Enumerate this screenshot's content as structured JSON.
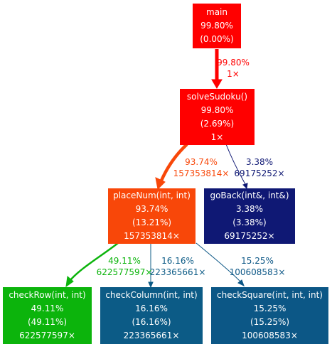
{
  "nodes": {
    "main": {
      "name": "main",
      "total": "99.80%",
      "self": "(0.00%)",
      "calls": "",
      "bg": "#ff0000",
      "fg": "#ffffff"
    },
    "solveSudoku": {
      "name": "solveSudoku()",
      "total": "99.80%",
      "self": "(2.69%)",
      "calls": "1×",
      "bg": "#ff0000",
      "fg": "#ffffff"
    },
    "placeNum": {
      "name": "placeNum(int, int)",
      "total": "93.74%",
      "self": "(13.21%)",
      "calls": "157353814×",
      "bg": "#f84709",
      "fg": "#ffffff"
    },
    "goBack": {
      "name": "goBack(int&, int&)",
      "total": "3.38%",
      "self": "(3.38%)",
      "calls": "69175252×",
      "bg": "#0f1874",
      "fg": "#ffffff"
    },
    "checkRow": {
      "name": "checkRow(int, int)",
      "total": "49.11%",
      "self": "(49.11%)",
      "calls": "622577597×",
      "bg": "#0cb40c",
      "fg": "#ffffff"
    },
    "checkColumn": {
      "name": "checkColumn(int, int)",
      "total": "16.16%",
      "self": "(16.16%)",
      "calls": "223365661×",
      "bg": "#0c5b86",
      "fg": "#ffffff"
    },
    "checkSquare": {
      "name": "checkSquare(int, int, int)",
      "total": "15.25%",
      "self": "(15.25%)",
      "calls": "100608583×",
      "bg": "#0c5786",
      "fg": "#ffffff"
    }
  },
  "edges": {
    "main_solve": {
      "pct": "99.80%",
      "calls": "1×",
      "color": "#ff0000"
    },
    "solve_place": {
      "pct": "93.74%",
      "calls": "157353814×",
      "color": "#f84709"
    },
    "solve_goback": {
      "pct": "3.38%",
      "calls": "69175252×",
      "color": "#0f1874"
    },
    "place_row": {
      "pct": "49.11%",
      "calls": "622577597×",
      "color": "#0cb40c"
    },
    "place_col": {
      "pct": "16.16%",
      "calls": "223365661×",
      "color": "#0c5b86"
    },
    "place_sq": {
      "pct": "15.25%",
      "calls": "100608583×",
      "color": "#0c5786"
    }
  }
}
